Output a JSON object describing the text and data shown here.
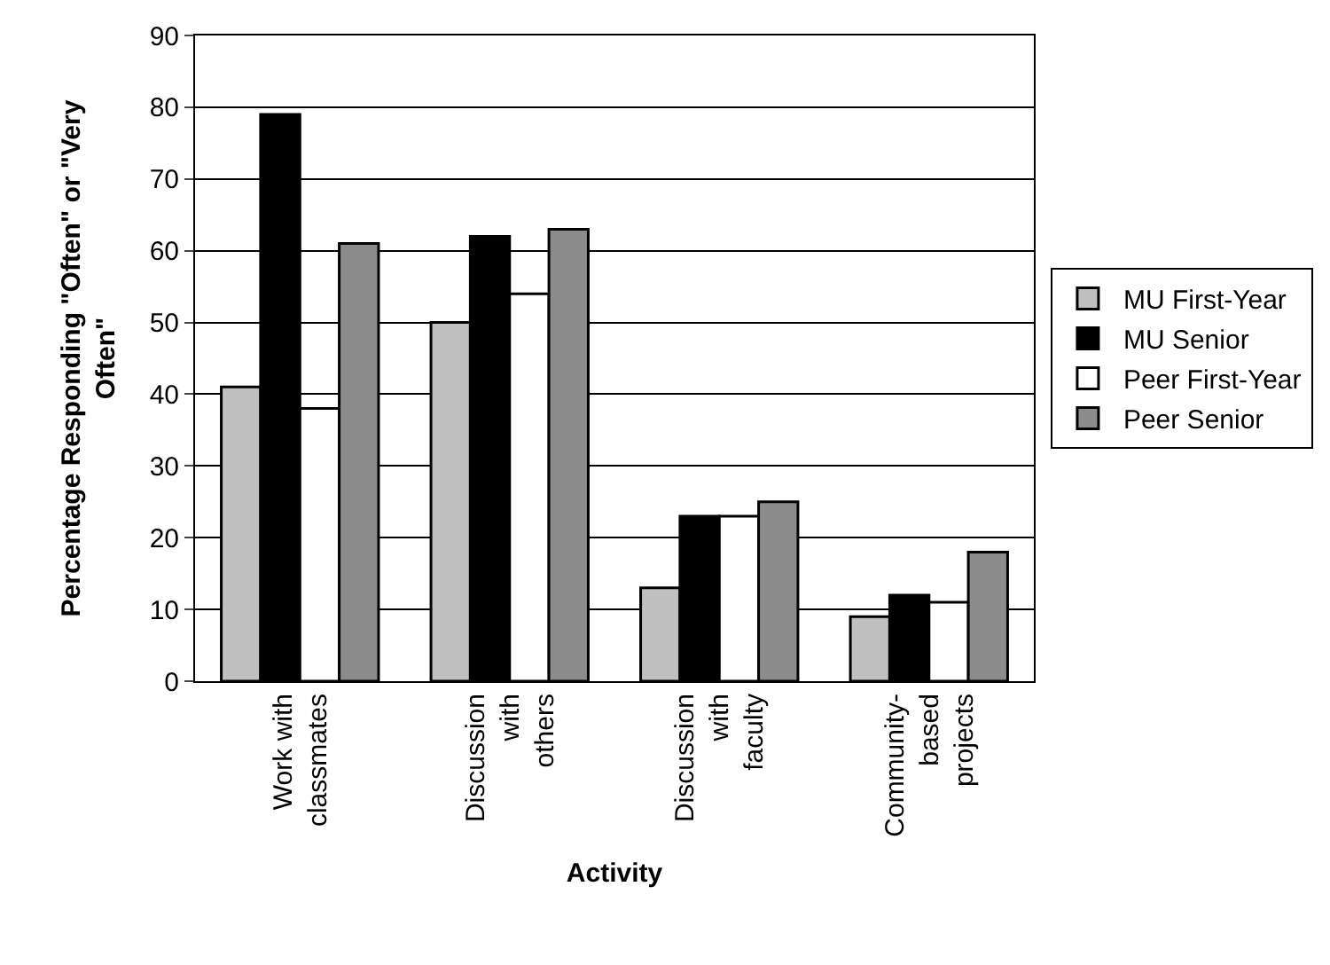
{
  "chart_data": {
    "type": "bar",
    "xlabel": "Activity",
    "ylabel": "Percentage Responding \"Often\" or \"Very Often\"",
    "categories": [
      "Work with classmates",
      "Discussion with others",
      "Discussion with faculty",
      "Community-based projects"
    ],
    "series": [
      {
        "name": "MU First-Year",
        "color": "#c0c0c0",
        "values": [
          41,
          50,
          13,
          9
        ]
      },
      {
        "name": "MU Senior",
        "color": "#000000",
        "values": [
          79,
          62,
          23,
          12
        ]
      },
      {
        "name": "Peer First-Year",
        "color": "#ffffff",
        "values": [
          38,
          54,
          23,
          11
        ]
      },
      {
        "name": "Peer Senior",
        "color": "#8c8c8c",
        "values": [
          61,
          63,
          25,
          18
        ]
      }
    ],
    "ylim": [
      0,
      90
    ],
    "yticks": [
      0,
      10,
      20,
      30,
      40,
      50,
      60,
      70,
      80,
      90
    ],
    "grid": "y",
    "legend": "right"
  }
}
